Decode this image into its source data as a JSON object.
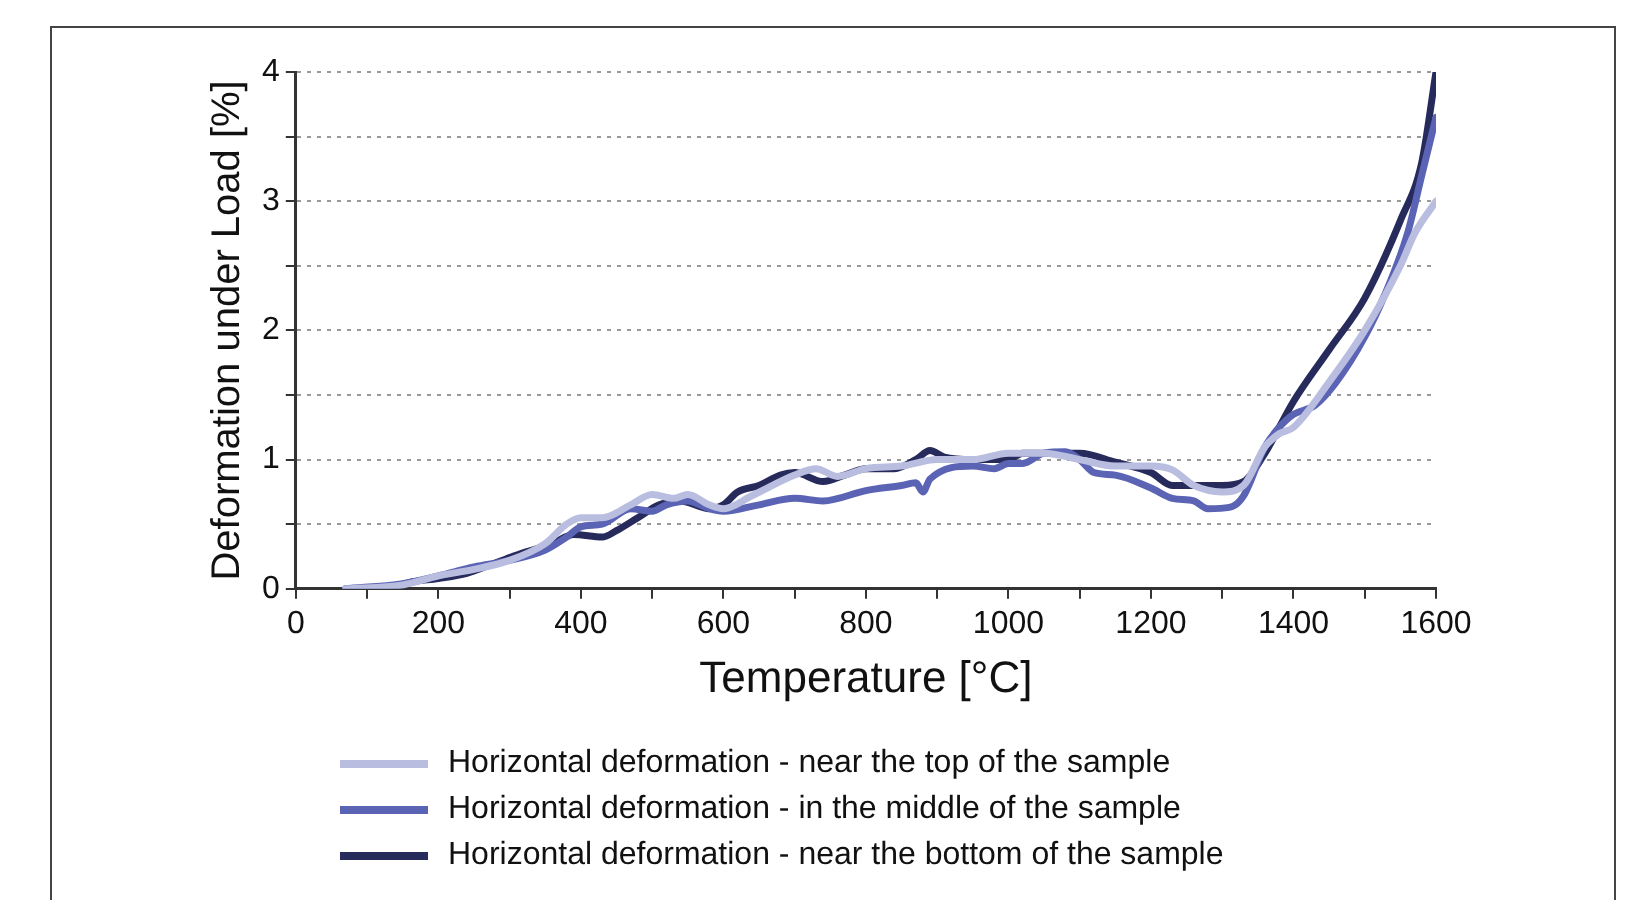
{
  "chart_data": {
    "type": "line",
    "xlabel": "Temperature [°C]",
    "ylabel": "Deformation under Load [%]",
    "xlim": [
      0,
      1600
    ],
    "xticks": [
      0,
      {
        "value": 100,
        "label": null
      },
      200,
      {
        "value": 300,
        "label": null
      },
      400,
      {
        "value": 500,
        "label": null
      },
      600,
      {
        "value": 700,
        "label": null
      },
      800,
      {
        "value": 900,
        "label": null
      },
      1000,
      {
        "value": 1100,
        "label": null
      },
      1200,
      {
        "value": 1300,
        "label": null
      },
      1400,
      {
        "value": 1500,
        "label": null
      },
      1600
    ],
    "ylim": [
      0,
      4
    ],
    "yticks": [
      0,
      {
        "value": 0.5,
        "label": null
      },
      1,
      {
        "value": 1.5,
        "label": null
      },
      2,
      {
        "value": 2.5,
        "label": null
      },
      3,
      {
        "value": 3.5,
        "label": null
      },
      4
    ],
    "grid": "y",
    "legend": "bottom",
    "marker": "none",
    "line_style": "solid",
    "series": [
      {
        "name": "Horizontal deformation - near the top of the sample",
        "color": "#b9bde0",
        "x": [
          70,
          150,
          200,
          250,
          300,
          350,
          380,
          400,
          430,
          470,
          500,
          530,
          550,
          580,
          600,
          640,
          700,
          730,
          760,
          800,
          850,
          900,
          950,
          1000,
          1050,
          1100,
          1150,
          1200,
          1230,
          1260,
          1300,
          1330,
          1360,
          1380,
          1400,
          1450,
          1500,
          1550,
          1570,
          1600
        ],
        "values": [
          0,
          0.03,
          0.1,
          0.15,
          0.22,
          0.35,
          0.5,
          0.55,
          0.55,
          0.65,
          0.73,
          0.7,
          0.73,
          0.65,
          0.62,
          0.72,
          0.88,
          0.93,
          0.87,
          0.93,
          0.95,
          1.0,
          1.0,
          1.05,
          1.05,
          1.0,
          0.95,
          0.95,
          0.92,
          0.8,
          0.75,
          0.8,
          1.1,
          1.2,
          1.25,
          1.6,
          2.0,
          2.5,
          2.75,
          3.0
        ]
      },
      {
        "name": "Horizontal deformation - in the middle of the sample",
        "color": "#5b64b4",
        "x": [
          70,
          150,
          200,
          250,
          300,
          350,
          380,
          400,
          430,
          470,
          500,
          520,
          550,
          580,
          600,
          650,
          700,
          740,
          800,
          850,
          870,
          880,
          890,
          950,
          980,
          1000,
          1020,
          1050,
          1080,
          1100,
          1120,
          1150,
          1200,
          1230,
          1260,
          1280,
          1310,
          1330,
          1360,
          1380,
          1400,
          1430,
          1460,
          1500,
          1530,
          1560,
          1580,
          1600
        ],
        "values": [
          0,
          0.04,
          0.1,
          0.17,
          0.22,
          0.3,
          0.4,
          0.48,
          0.5,
          0.62,
          0.6,
          0.65,
          0.68,
          0.62,
          0.6,
          0.65,
          0.7,
          0.68,
          0.76,
          0.8,
          0.82,
          0.75,
          0.85,
          0.95,
          0.93,
          0.97,
          0.97,
          1.05,
          1.06,
          1.0,
          0.9,
          0.88,
          0.78,
          0.7,
          0.68,
          0.62,
          0.63,
          0.72,
          1.1,
          1.25,
          1.35,
          1.42,
          1.6,
          1.95,
          2.3,
          2.75,
          3.2,
          3.65
        ]
      },
      {
        "name": "Horizontal deformation - near the bottom of the sample",
        "color": "#262b5c",
        "x": [
          70,
          130,
          160,
          200,
          240,
          280,
          320,
          360,
          390,
          430,
          450,
          480,
          510,
          540,
          580,
          600,
          620,
          650,
          680,
          700,
          740,
          770,
          800,
          840,
          870,
          890,
          910,
          950,
          1000,
          1020,
          1060,
          1100,
          1150,
          1200,
          1230,
          1300,
          1330,
          1360,
          1400,
          1450,
          1500,
          1550,
          1580,
          1600
        ],
        "values": [
          0,
          0,
          0.05,
          0.08,
          0.12,
          0.2,
          0.28,
          0.35,
          0.42,
          0.4,
          0.45,
          0.55,
          0.65,
          0.68,
          0.62,
          0.65,
          0.75,
          0.8,
          0.88,
          0.9,
          0.83,
          0.88,
          0.93,
          0.93,
          1.0,
          1.07,
          1.02,
          1.0,
          1.0,
          1.05,
          1.05,
          1.05,
          0.98,
          0.9,
          0.8,
          0.8,
          0.83,
          1.05,
          1.45,
          1.85,
          2.25,
          2.85,
          3.3,
          4.0
        ]
      }
    ]
  }
}
